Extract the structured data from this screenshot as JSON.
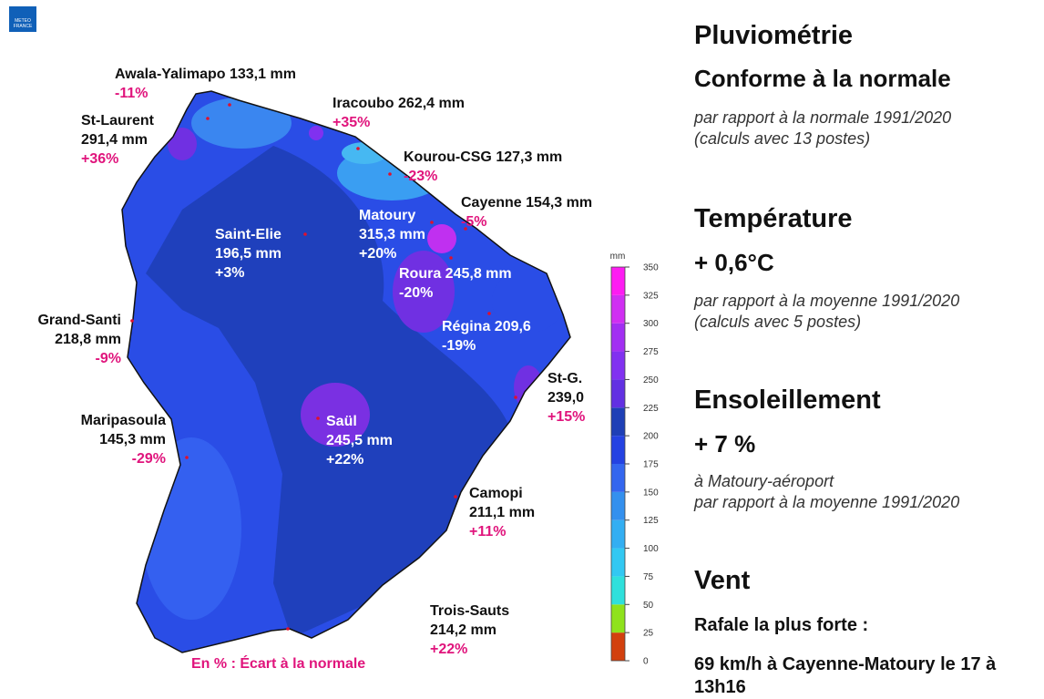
{
  "logo": [
    "METEO",
    "FRANCE"
  ],
  "map": {
    "stations": [
      {
        "lines": [
          "Awala-Yalimapo 133,1 mm",
          "-11%"
        ]
      },
      {
        "lines": [
          "Iracoubo 262,4 mm",
          "+35%"
        ]
      },
      {
        "lines": [
          "St-Laurent",
          "291,4 mm",
          "+36%"
        ]
      },
      {
        "lines": [
          "Kourou-CSG 127,3 mm",
          "-23%"
        ]
      },
      {
        "lines": [
          "Cayenne 154,3 mm",
          "-5%"
        ]
      },
      {
        "lines": [
          "Saint-Elie",
          "196,5 mm",
          "+3%"
        ]
      },
      {
        "lines": [
          "Matoury",
          "315,3 mm",
          "+20%"
        ]
      },
      {
        "lines": [
          "Roura 245,8 mm",
          "-20%"
        ]
      },
      {
        "lines": [
          "Régina 209,6",
          "-19%"
        ]
      },
      {
        "lines": [
          "Grand-Santi",
          "218,8 mm",
          "-9%"
        ]
      },
      {
        "lines": [
          "St-G.",
          "239,0",
          "+15%"
        ]
      },
      {
        "lines": [
          "Maripasoula",
          "145,3 mm",
          "-29%"
        ]
      },
      {
        "lines": [
          "Saül",
          "245,5 mm",
          "+22%"
        ]
      },
      {
        "lines": [
          "Camopi",
          "211,1 mm",
          "+11%"
        ]
      },
      {
        "lines": [
          "Trois-Sauts",
          "214,2 mm",
          "+22%"
        ]
      }
    ],
    "footnote": "En % : Écart à la normale"
  },
  "colorbar": {
    "unit": "mm",
    "ticks": [
      0,
      25,
      50,
      75,
      100,
      125,
      150,
      175,
      200,
      225,
      250,
      275,
      300,
      325,
      350
    ],
    "colors": [
      "#d2400e",
      "#8fe21c",
      "#2fe0dc",
      "#32c8f2",
      "#33aef2",
      "#3490ee",
      "#3466ef",
      "#2442e2",
      "#1e3fb6",
      "#6230e2",
      "#8131f0",
      "#a22ff2",
      "#d02ff2",
      "#fd1cf2"
    ]
  },
  "panel": {
    "rain": {
      "title": "Pluviométrie",
      "status": "Conforme à la normale",
      "notes": [
        "par rapport à la normale 1991/2020",
        "(calculs avec 13 postes)"
      ]
    },
    "temperature": {
      "title": "Température",
      "value": "+ 0,6°C",
      "notes": [
        "par rapport à la moyenne 1991/2020",
        "(calculs avec 5 postes)"
      ]
    },
    "sunshine": {
      "title": "Ensoleillement",
      "value": "+ 7 %",
      "notes": [
        "à Matoury-aéroport",
        "par rapport à la moyenne 1991/2020"
      ]
    },
    "wind": {
      "title": "Vent",
      "label": "Rafale la plus forte :",
      "lines": [
        "69 km/h à Cayenne-Matoury le 17 à",
        "13h16"
      ]
    }
  }
}
